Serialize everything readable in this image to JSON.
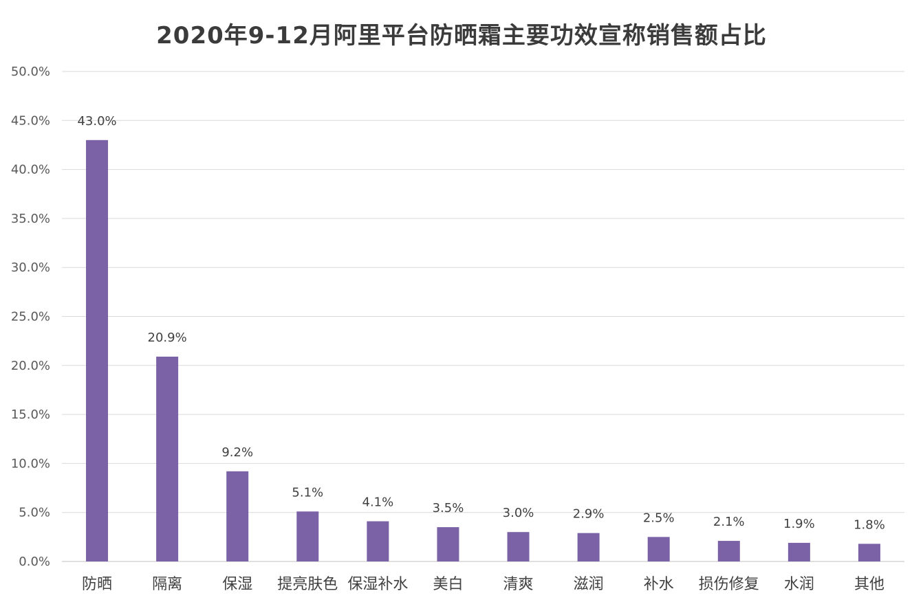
{
  "chart_data": {
    "type": "bar",
    "title": "2020年9-12月阿里平台防晒霜主要功效宣称销售额占比",
    "xlabel": "",
    "ylabel": "",
    "categories": [
      "防晒",
      "隔离",
      "保湿",
      "提亮肤色",
      "保湿补水",
      "美白",
      "清爽",
      "滋润",
      "补水",
      "损伤修复",
      "水润",
      "其他"
    ],
    "values": [
      43.0,
      20.9,
      9.2,
      5.1,
      4.1,
      3.5,
      3.0,
      2.9,
      2.5,
      2.1,
      1.9,
      1.8
    ],
    "data_labels": [
      "43.0%",
      "20.9%",
      "9.2%",
      "5.1%",
      "4.1%",
      "3.5%",
      "3.0%",
      "2.9%",
      "2.5%",
      "2.1%",
      "1.9%",
      "1.8%"
    ],
    "ylim": [
      0,
      50
    ],
    "yticks": [
      0,
      5,
      10,
      15,
      20,
      25,
      30,
      35,
      40,
      45,
      50
    ],
    "ytick_labels": [
      "0.0%",
      "5.0%",
      "10.0%",
      "15.0%",
      "20.0%",
      "25.0%",
      "30.0%",
      "35.0%",
      "40.0%",
      "45.0%",
      "50.0%"
    ],
    "grid": true,
    "legend": "none",
    "bar_color": "#7b62a6"
  }
}
